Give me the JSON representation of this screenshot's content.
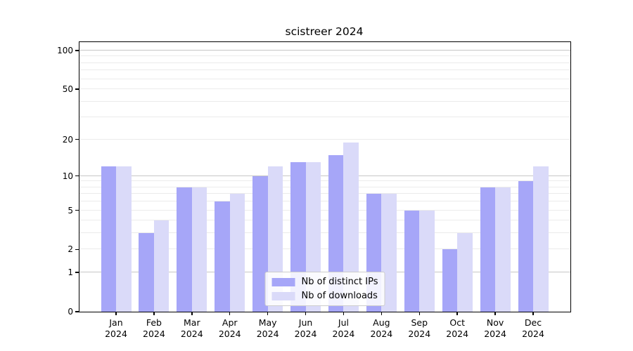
{
  "chart_data": {
    "type": "bar",
    "title": "scistreer 2024",
    "scale": "symlog",
    "grid": true,
    "legend_position": "lower center",
    "categories": [
      "Jan",
      "Feb",
      "Mar",
      "Apr",
      "May",
      "Jun",
      "Jul",
      "Aug",
      "Sep",
      "Oct",
      "Nov",
      "Dec"
    ],
    "year_label": "2024",
    "series": [
      {
        "name": "Nb of distinct IPs",
        "color": "#a6a6f8",
        "values": [
          12,
          3,
          8,
          6,
          10,
          13,
          15,
          7,
          5,
          2,
          8,
          9
        ]
      },
      {
        "name": "Nb of downloads",
        "color": "#dadaf9",
        "values": [
          12,
          4,
          8,
          7,
          12,
          13,
          19,
          7,
          5,
          3,
          8,
          12
        ]
      }
    ],
    "yticks": [
      0,
      1,
      2,
      5,
      10,
      20,
      50,
      100
    ],
    "ylim": [
      0,
      112
    ],
    "colors": {
      "major_gridline": "#c6c6c6",
      "minor_gridline": "#ebebeb",
      "axis": "#000000",
      "legend_border": "#cccccc"
    }
  }
}
